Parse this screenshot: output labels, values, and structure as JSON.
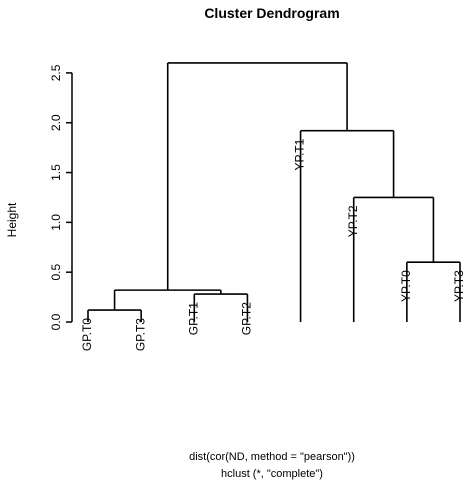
{
  "chart_data": {
    "type": "dendrogram",
    "title": "Cluster Dendrogram",
    "ylabel": "Height",
    "xlabel_lines": [
      "dist(cor(ND, method = \"pearson\"))",
      "hclust (*, \"complete\")"
    ],
    "ylim": [
      0,
      2.75
    ],
    "yticks": [
      "0.0",
      "0.5",
      "1.0",
      "1.5",
      "2.0",
      "2.5"
    ],
    "leaves": [
      {
        "label": "GP.T0",
        "height": 0.12
      },
      {
        "label": "GP.T3",
        "height": 0.12
      },
      {
        "label": "GP.T1",
        "height": 0.28
      },
      {
        "label": "GP.T2",
        "height": 0.28
      },
      {
        "label": "YP.T1",
        "height": 1.92
      },
      {
        "label": "YP.T2",
        "height": 1.25
      },
      {
        "label": "YP.T0",
        "height": 0.6
      },
      {
        "label": "YP.T3",
        "height": 0.6
      }
    ],
    "merges": [
      {
        "left": "leaf:0",
        "right": "leaf:1",
        "height": 0.12
      },
      {
        "left": "leaf:2",
        "right": "leaf:3",
        "height": 0.28
      },
      {
        "left": "node:0",
        "right": "node:1",
        "height": 0.32
      },
      {
        "left": "leaf:6",
        "right": "leaf:7",
        "height": 0.6
      },
      {
        "left": "leaf:5",
        "right": "node:3",
        "height": 1.25
      },
      {
        "left": "leaf:4",
        "right": "node:4",
        "height": 1.92
      },
      {
        "left": "node:2",
        "right": "node:5",
        "height": 2.6
      }
    ],
    "line_color": "#000000"
  }
}
